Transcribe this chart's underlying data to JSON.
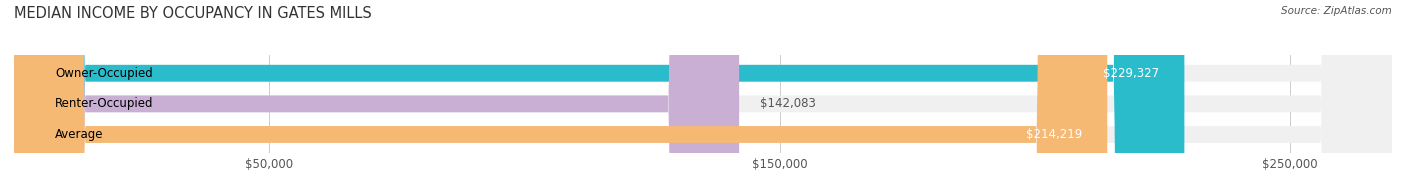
{
  "title": "MEDIAN INCOME BY OCCUPANCY IN GATES MILLS",
  "source": "Source: ZipAtlas.com",
  "categories": [
    "Owner-Occupied",
    "Renter-Occupied",
    "Average"
  ],
  "values": [
    229327,
    142083,
    214219
  ],
  "labels": [
    "$229,327",
    "$142,083",
    "$214,219"
  ],
  "bar_colors": [
    "#2bbccc",
    "#c9afd4",
    "#f5b974"
  ],
  "bar_bg_color": "#f0f0f0",
  "label_colors": [
    "#ffffff",
    "#555555",
    "#ffffff"
  ],
  "xlim": [
    0,
    270000
  ],
  "xticks": [
    0,
    50000,
    150000,
    250000
  ],
  "xtick_labels": [
    "",
    "$50,000",
    "$150,000",
    "$250,000"
  ],
  "figsize": [
    14.06,
    1.96
  ],
  "dpi": 100,
  "bar_height": 0.55,
  "background_color": "#ffffff",
  "title_fontsize": 10.5,
  "label_fontsize": 8.5,
  "tick_fontsize": 8.5,
  "source_fontsize": 7.5
}
